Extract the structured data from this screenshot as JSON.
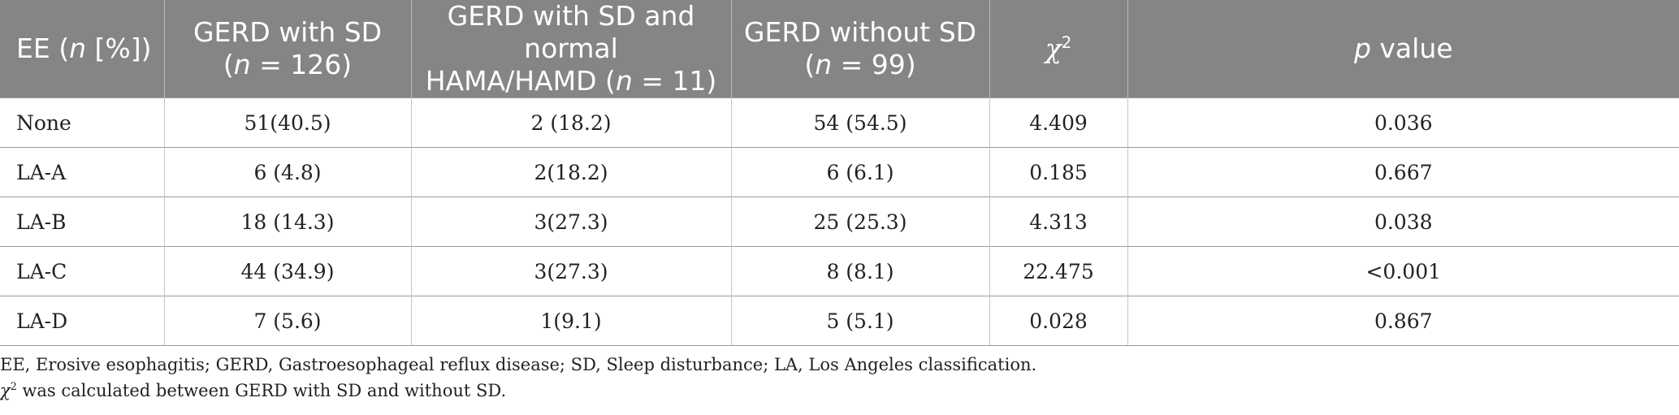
{
  "table": {
    "headers": {
      "col1_prefix": "EE (",
      "col1_n": "n",
      "col1_suffix": " [%])",
      "col2_line1": "GERD with SD",
      "col2_open": "(",
      "col2_n": "n",
      "col2_close": " = 126)",
      "col3_line1": "GERD with SD and normal",
      "col3_line2_prefix": "HAMA/HAMD (",
      "col3_n": "n",
      "col3_close": " = 11)",
      "col4_line1": "GERD without SD",
      "col4_open": "(",
      "col4_n": "n",
      "col4_close": " = 99)",
      "col5_symbol": "χ",
      "col5_sup": "2",
      "col6_p": "p",
      "col6_suffix": " value"
    },
    "rows": [
      {
        "ee": "None",
        "gerd_sd": "51(40.5)",
        "gerd_sd_normal": "2 (18.2)",
        "gerd_no_sd": "54 (54.5)",
        "chi2": "4.409",
        "p": "0.036"
      },
      {
        "ee": "LA-A",
        "gerd_sd": "6 (4.8)",
        "gerd_sd_normal": "2(18.2)",
        "gerd_no_sd": "6 (6.1)",
        "chi2": "0.185",
        "p": "0.667"
      },
      {
        "ee": "LA-B",
        "gerd_sd": "18 (14.3)",
        "gerd_sd_normal": "3(27.3)",
        "gerd_no_sd": "25 (25.3)",
        "chi2": "4.313",
        "p": "0.038"
      },
      {
        "ee": "LA-C",
        "gerd_sd": "44 (34.9)",
        "gerd_sd_normal": "3(27.3)",
        "gerd_no_sd": "8 (8.1)",
        "chi2": "22.475",
        "p": "<0.001"
      },
      {
        "ee": "LA-D",
        "gerd_sd": "7 (5.6)",
        "gerd_sd_normal": "1(9.1)",
        "gerd_no_sd": "5 (5.1)",
        "chi2": "0.028",
        "p": "0.867"
      }
    ]
  },
  "footnotes": {
    "abbreviations": "EE, Erosive esophagitis; GERD, Gastroesophageal reflux disease; SD, Sleep disturbance; LA, Los Angeles classification.",
    "chi_symbol": "χ",
    "chi_sup": "2",
    "chi_note": " was calculated between GERD with SD and without SD."
  }
}
